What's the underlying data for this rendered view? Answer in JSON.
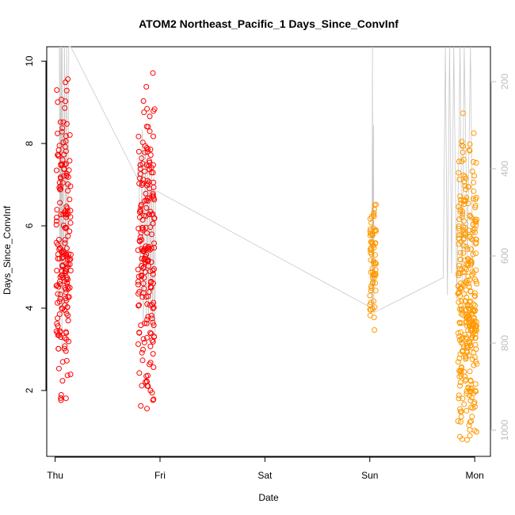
{
  "chart_data": {
    "type": "scatter",
    "title": "ATOM2 Northeast_Pacific_1 Days_Since_ConvInf",
    "xlabel": "Date",
    "ylabel": "Days_Since_ConvInf",
    "x_ticks": [
      "Thu",
      "Fri",
      "Sat",
      "Sun",
      "Mon"
    ],
    "x_range_days": [
      -0.08,
      4.15
    ],
    "ylim": [
      0.4,
      10.35
    ],
    "y_ticks": [
      2,
      4,
      6,
      8,
      10
    ],
    "y_right_ticks": [
      200,
      400,
      600,
      800,
      1000
    ],
    "y_right_lim": [
      120,
      1060
    ],
    "y_right_inverted": true,
    "grid": false,
    "legend": "none",
    "marker": "open-circle",
    "colors": {
      "early": "#ff0000",
      "late": "#ff9900",
      "altitude_trace": "#c8c8c8"
    },
    "clusters": [
      {
        "x_center": 0.08,
        "x_spread": 0.07,
        "y_min": 1.4,
        "y_max": 9.9,
        "y_mode": 5.0,
        "count": 190,
        "color": "early"
      },
      {
        "x_center": 0.87,
        "x_spread": 0.08,
        "y_min": 1.1,
        "y_max": 10.0,
        "y_mode": 5.5,
        "count": 200,
        "color": "early"
      },
      {
        "x_center": 3.03,
        "x_spread": 0.03,
        "y_min": 3.4,
        "y_max": 7.0,
        "y_mode": 5.4,
        "count": 70,
        "color": "late"
      },
      {
        "x_center": 3.93,
        "x_spread": 0.09,
        "y_min": 0.6,
        "y_max": 9.2,
        "y_mode": 3.5,
        "count": 330,
        "color": "late"
      }
    ],
    "altitude_trace": [
      {
        "t": 0.04,
        "alt": 120
      },
      {
        "t": 0.045,
        "alt": 780
      },
      {
        "t": 0.05,
        "alt": 120
      },
      {
        "t": 0.055,
        "alt": 640
      },
      {
        "t": 0.06,
        "alt": 120
      },
      {
        "t": 0.065,
        "alt": 820
      },
      {
        "t": 0.07,
        "alt": 120
      },
      {
        "t": 0.08,
        "alt": 720
      },
      {
        "t": 0.09,
        "alt": 120
      },
      {
        "t": 0.1,
        "alt": 680
      },
      {
        "t": 0.11,
        "alt": 120
      },
      {
        "t": 0.12,
        "alt": 750
      },
      {
        "t": 0.13,
        "alt": 120
      },
      {
        "t": 0.15,
        "alt": 120
      },
      {
        "t": 0.78,
        "alt": 420
      },
      {
        "t": 0.8,
        "alt": 380
      },
      {
        "t": 0.81,
        "alt": 720
      },
      {
        "t": 0.83,
        "alt": 310
      },
      {
        "t": 0.84,
        "alt": 760
      },
      {
        "t": 0.86,
        "alt": 340
      },
      {
        "t": 0.87,
        "alt": 740
      },
      {
        "t": 0.88,
        "alt": 360
      },
      {
        "t": 0.89,
        "alt": 760
      },
      {
        "t": 0.9,
        "alt": 400
      },
      {
        "t": 0.91,
        "alt": 730
      },
      {
        "t": 0.92,
        "alt": 380
      },
      {
        "t": 0.93,
        "alt": 770
      },
      {
        "t": 0.94,
        "alt": 420
      },
      {
        "t": 0.95,
        "alt": 800
      },
      {
        "t": 0.96,
        "alt": 450
      },
      {
        "t": 3.02,
        "alt": 720
      },
      {
        "t": 3.025,
        "alt": 120
      },
      {
        "t": 3.03,
        "alt": 700
      },
      {
        "t": 3.035,
        "alt": 300
      },
      {
        "t": 3.04,
        "alt": 730
      },
      {
        "t": 3.7,
        "alt": 650
      },
      {
        "t": 3.72,
        "alt": 120
      },
      {
        "t": 3.74,
        "alt": 690
      },
      {
        "t": 3.76,
        "alt": 120
      },
      {
        "t": 3.78,
        "alt": 640
      },
      {
        "t": 3.8,
        "alt": 120
      },
      {
        "t": 3.83,
        "alt": 700
      },
      {
        "t": 3.86,
        "alt": 120
      },
      {
        "t": 3.88,
        "alt": 660
      },
      {
        "t": 3.9,
        "alt": 120
      },
      {
        "t": 3.93,
        "alt": 600
      },
      {
        "t": 3.96,
        "alt": 120
      },
      {
        "t": 3.98,
        "alt": 640
      }
    ]
  }
}
